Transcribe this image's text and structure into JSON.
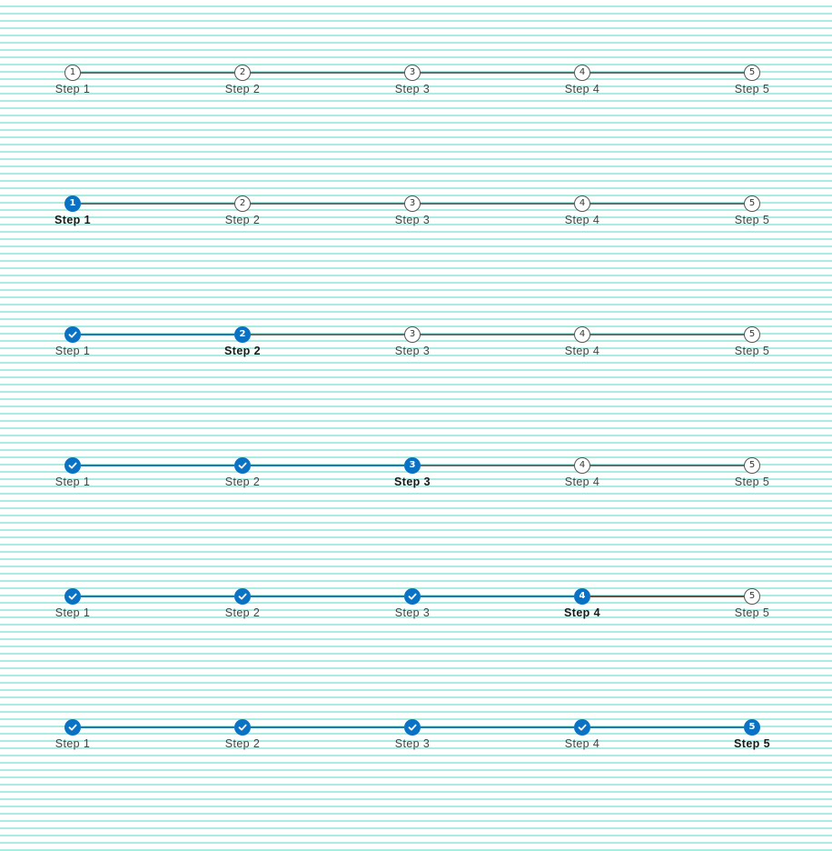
{
  "colors": {
    "accent": "#0a72c4",
    "completed_line": "#1f78b4",
    "pending_line": "#6b6b6b",
    "active_line": "#7a4a3a",
    "background_rules": "#a8ece2"
  },
  "icons": {
    "complete": "checkmark-icon"
  },
  "steppers": [
    {
      "current_step": 0,
      "steps": [
        {
          "label": "Step 1",
          "number": "1",
          "state": "upcoming"
        },
        {
          "label": "Step 2",
          "number": "2",
          "state": "upcoming"
        },
        {
          "label": "Step 3",
          "number": "3",
          "state": "upcoming"
        },
        {
          "label": "Step 4",
          "number": "4",
          "state": "upcoming"
        },
        {
          "label": "Step 5",
          "number": "5",
          "state": "upcoming"
        }
      ]
    },
    {
      "current_step": 1,
      "steps": [
        {
          "label": "Step 1",
          "number": "1",
          "state": "current"
        },
        {
          "label": "Step 2",
          "number": "2",
          "state": "upcoming"
        },
        {
          "label": "Step 3",
          "number": "3",
          "state": "upcoming"
        },
        {
          "label": "Step 4",
          "number": "4",
          "state": "upcoming"
        },
        {
          "label": "Step 5",
          "number": "5",
          "state": "upcoming"
        }
      ]
    },
    {
      "current_step": 2,
      "steps": [
        {
          "label": "Step 1",
          "number": "1",
          "state": "complete"
        },
        {
          "label": "Step 2",
          "number": "2",
          "state": "current"
        },
        {
          "label": "Step 3",
          "number": "3",
          "state": "upcoming"
        },
        {
          "label": "Step 4",
          "number": "4",
          "state": "upcoming"
        },
        {
          "label": "Step 5",
          "number": "5",
          "state": "upcoming"
        }
      ]
    },
    {
      "current_step": 3,
      "steps": [
        {
          "label": "Step 1",
          "number": "1",
          "state": "complete"
        },
        {
          "label": "Step 2",
          "number": "2",
          "state": "complete"
        },
        {
          "label": "Step 3",
          "number": "3",
          "state": "current"
        },
        {
          "label": "Step 4",
          "number": "4",
          "state": "upcoming"
        },
        {
          "label": "Step 5",
          "number": "5",
          "state": "upcoming"
        }
      ]
    },
    {
      "current_step": 4,
      "steps": [
        {
          "label": "Step 1",
          "number": "1",
          "state": "complete"
        },
        {
          "label": "Step 2",
          "number": "2",
          "state": "complete"
        },
        {
          "label": "Step 3",
          "number": "3",
          "state": "complete"
        },
        {
          "label": "Step 4",
          "number": "4",
          "state": "current"
        },
        {
          "label": "Step 5",
          "number": "5",
          "state": "upcoming"
        }
      ]
    },
    {
      "current_step": 5,
      "steps": [
        {
          "label": "Step 1",
          "number": "1",
          "state": "complete"
        },
        {
          "label": "Step 2",
          "number": "2",
          "state": "complete"
        },
        {
          "label": "Step 3",
          "number": "3",
          "state": "complete"
        },
        {
          "label": "Step 4",
          "number": "4",
          "state": "complete"
        },
        {
          "label": "Step 5",
          "number": "5",
          "state": "current"
        }
      ]
    }
  ]
}
